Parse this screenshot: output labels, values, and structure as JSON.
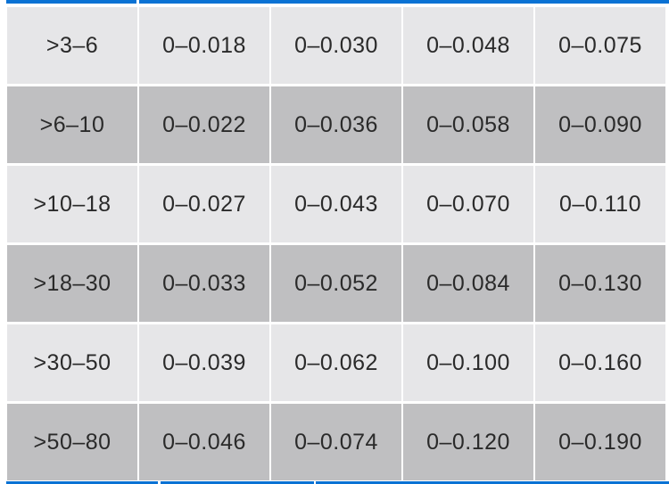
{
  "colors": {
    "accent": "#0a72d4",
    "row_light": "#e6e6e8",
    "row_dark": "#bfbfc1"
  },
  "rows": [
    {
      "range": ">3–6",
      "values": [
        "0–0.018",
        "0–0.030",
        "0–0.048",
        "0–0.075"
      ]
    },
    {
      "range": ">6–10",
      "values": [
        "0–0.022",
        "0–0.036",
        "0–0.058",
        "0–0.090"
      ]
    },
    {
      "range": ">10–18",
      "values": [
        "0–0.027",
        "0–0.043",
        "0–0.070",
        "0–0.110"
      ]
    },
    {
      "range": ">18–30",
      "values": [
        "0–0.033",
        "0–0.052",
        "0–0.084",
        "0–0.130"
      ]
    },
    {
      "range": ">30–50",
      "values": [
        "0–0.039",
        "0–0.062",
        "0–0.100",
        "0–0.160"
      ]
    },
    {
      "range": ">50–80",
      "values": [
        "0–0.046",
        "0–0.074",
        "0–0.120",
        "0–0.190"
      ]
    }
  ]
}
